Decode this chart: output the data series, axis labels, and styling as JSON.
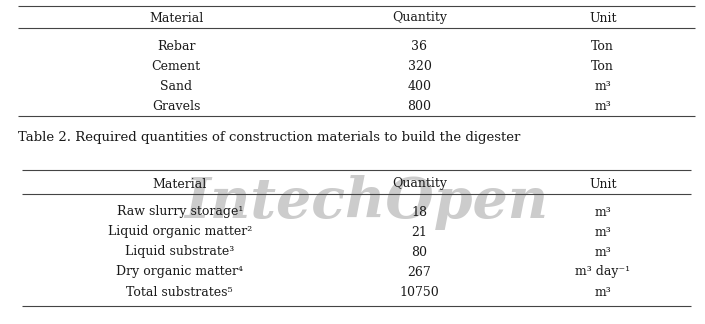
{
  "caption": "Table 2. Required quantities of construction materials to build the digester",
  "table1": {
    "headers": [
      "Material",
      "Quantity",
      "Unit"
    ],
    "rows": [
      [
        "Rebar",
        "36",
        "Ton"
      ],
      [
        "Cement",
        "320",
        "Ton"
      ],
      [
        "Sand",
        "400",
        "m³"
      ],
      [
        "Gravels",
        "800",
        "m³"
      ]
    ]
  },
  "table2": {
    "headers": [
      "Material",
      "Quantity",
      "Unit"
    ],
    "rows": [
      [
        "Raw slurry storage¹",
        "18",
        "m³"
      ],
      [
        "Liquid organic matter²",
        "21",
        "m³"
      ],
      [
        "Liquid substrate³",
        "80",
        "m³"
      ],
      [
        "Dry organic matter⁴",
        "267",
        "m³ day⁻¹"
      ],
      [
        "Total substrates⁵",
        "10750",
        "m³"
      ]
    ]
  },
  "bg_color": "#ffffff",
  "text_color": "#1a1a1a",
  "line_color": "#444444",
  "watermark_color": "#cccccc",
  "font_size": 9.0,
  "caption_font_size": 9.5
}
